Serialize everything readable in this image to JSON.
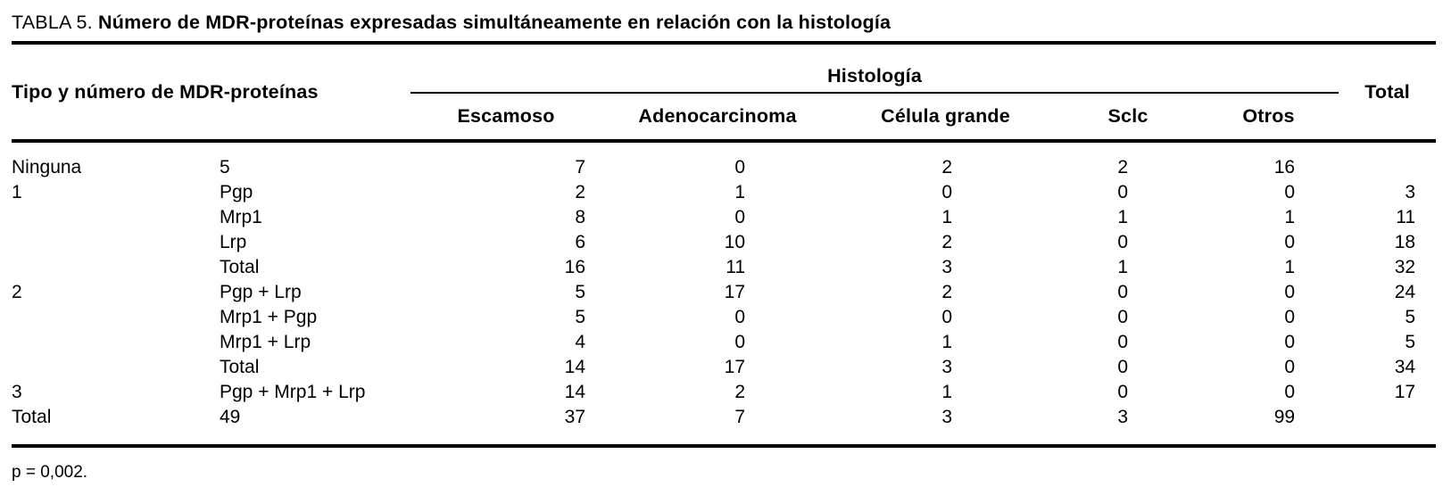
{
  "title": {
    "prefix": "TABLA 5. ",
    "text": "Número de MDR-proteínas expresadas simultáneamente en relación con la histología"
  },
  "table": {
    "col1_header": "Tipo y número de MDR-proteínas",
    "group_header": "Histología",
    "total_header": "Total",
    "histology_columns": [
      "Escamoso",
      "Adenocarcinoma",
      "Célula grande",
      "Sclc",
      "Otros"
    ],
    "rows": [
      {
        "tipo": "Ninguna",
        "proteinas": "5",
        "values": [
          "7",
          "0",
          "2",
          "2",
          "16"
        ],
        "total": ""
      },
      {
        "tipo": "1",
        "proteinas": "Pgp",
        "values": [
          "2",
          "1",
          "0",
          "0",
          "0"
        ],
        "total": "3"
      },
      {
        "tipo": "",
        "proteinas": "Mrp1",
        "values": [
          "8",
          "0",
          "1",
          "1",
          "1"
        ],
        "total": "11"
      },
      {
        "tipo": "",
        "proteinas": "Lrp",
        "values": [
          "6",
          "10",
          "2",
          "0",
          "0"
        ],
        "total": "18"
      },
      {
        "tipo": "",
        "proteinas": "Total",
        "values": [
          "16",
          "11",
          "3",
          "1",
          "1"
        ],
        "total": "32"
      },
      {
        "tipo": "2",
        "proteinas": "Pgp + Lrp",
        "values": [
          "5",
          "17",
          "2",
          "0",
          "0"
        ],
        "total": "24"
      },
      {
        "tipo": "",
        "proteinas": "Mrp1 + Pgp",
        "values": [
          "5",
          "0",
          "0",
          "0",
          "0"
        ],
        "total": "5"
      },
      {
        "tipo": "",
        "proteinas": "Mrp1 + Lrp",
        "values": [
          "4",
          "0",
          "1",
          "0",
          "0"
        ],
        "total": "5"
      },
      {
        "tipo": "",
        "proteinas": "Total",
        "values": [
          "14",
          "17",
          "3",
          "0",
          "0"
        ],
        "total": "34"
      },
      {
        "tipo": "3",
        "proteinas": "Pgp + Mrp1 + Lrp",
        "values": [
          "14",
          "2",
          "1",
          "0",
          "0"
        ],
        "total": "17"
      },
      {
        "tipo": "Total",
        "proteinas": "49",
        "values": [
          "37",
          "7",
          "3",
          "3",
          "99"
        ],
        "total": ""
      }
    ]
  },
  "footnote": "p = 0,002."
}
